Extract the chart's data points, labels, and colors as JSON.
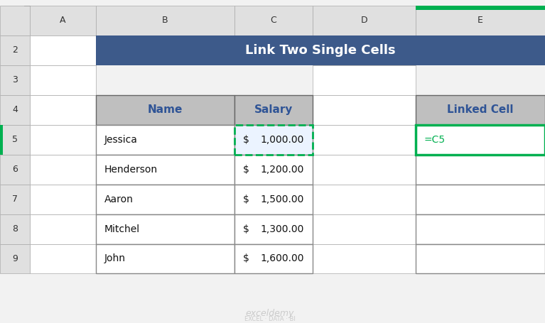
{
  "title": "Link Two Single Cells",
  "title_bg": "#3D5A8A",
  "title_color": "#FFFFFF",
  "header_bg": "#BFBFBF",
  "header_text_color": "#2F5496",
  "names": [
    "Jessica",
    "Henderson",
    "Aaron",
    "Mitchel",
    "John"
  ],
  "salaries": [
    "$    1,000.00",
    "$    1,200.00",
    "$    1,500.00",
    "$    1,300.00",
    "$    1,600.00"
  ],
  "salary_display": [
    "$   1,000.00",
    "$   1,200.00",
    "$   1,500.00",
    "$   1,300.00",
    "$   1,600.00"
  ],
  "linked_cell_header": "Linked Cell",
  "linked_cell_value": "=C5",
  "linked_cell_color": "#00B050",
  "dashed_border_color": "#00B050",
  "row_selected_bg": "#EBF3FF",
  "bg_color": "#F2F2F2",
  "col_header_bg": "#E0E0E0",
  "col_header_border": "#AAAAAA",
  "grid_color": "#AAAAAA",
  "cell_bg": "#FFFFFF",
  "watermark_color": "#CCCCCC"
}
